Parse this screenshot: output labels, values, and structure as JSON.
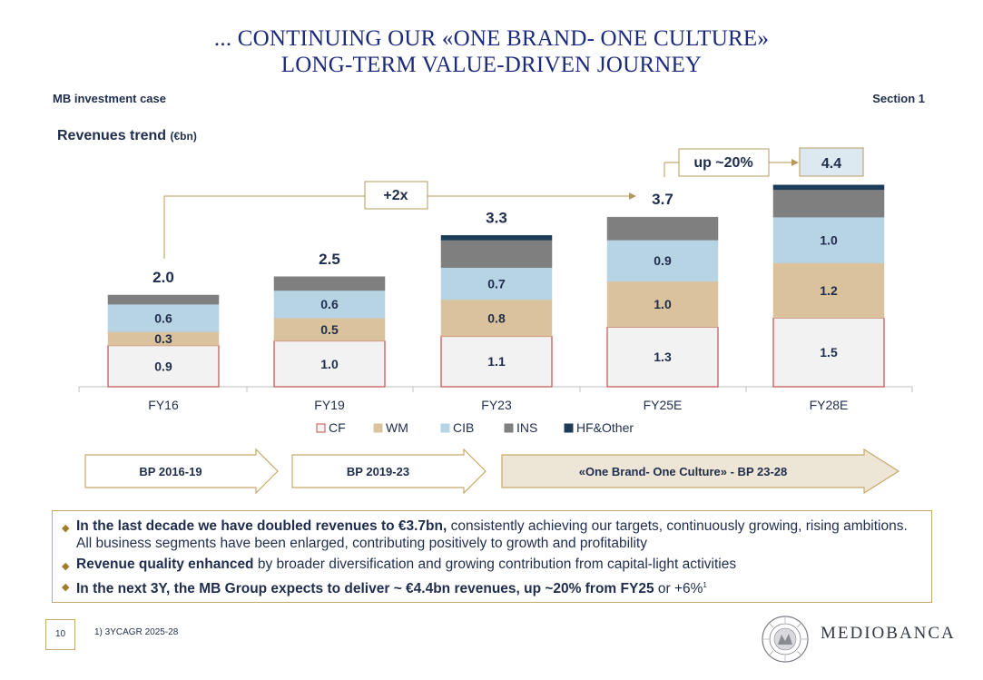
{
  "title": {
    "line1": "... CONTINUING OUR «ONE BRAND- ONE CULTURE»",
    "line2": "LONG-TERM VALUE-DRIVEN JOURNEY"
  },
  "header": {
    "left": "MB investment case",
    "right": "Section 1"
  },
  "chart_data": {
    "type": "bar",
    "stacked": true,
    "title": "Revenues trend",
    "unit": "(€bn)",
    "categories": [
      "FY16",
      "FY19",
      "FY23",
      "FY25E",
      "FY28E"
    ],
    "totals": [
      2.0,
      2.5,
      3.3,
      3.7,
      4.4
    ],
    "total_labels": [
      "2.0",
      "2.5",
      "3.3",
      "3.7",
      "4.4"
    ],
    "series": [
      {
        "name": "CF",
        "color": "#f2f2f2",
        "border": "#c0504d",
        "values": [
          0.9,
          1.0,
          1.1,
          1.3,
          1.5
        ],
        "labels": [
          "0.9",
          "1.0",
          "1.1",
          "1.3",
          "1.5"
        ]
      },
      {
        "name": "WM",
        "color": "#d9c29c",
        "border": "#d9c29c",
        "values": [
          0.3,
          0.5,
          0.8,
          1.0,
          1.2
        ],
        "labels": [
          "0.3",
          "0.5",
          "0.8",
          "1.0",
          "1.2"
        ]
      },
      {
        "name": "CIB",
        "color": "#b7d4e4",
        "border": "#b7d4e4",
        "values": [
          0.6,
          0.6,
          0.7,
          0.9,
          1.0
        ],
        "labels": [
          "0.6",
          "0.6",
          "0.7",
          "0.9",
          "1.0"
        ]
      },
      {
        "name": "INS",
        "color": "#807f7f",
        "border": "#807f7f",
        "values": [
          0.2,
          0.3,
          0.6,
          0.5,
          0.6
        ],
        "labels": [
          "",
          "",
          "",
          "",
          ""
        ]
      },
      {
        "name": "HF&Other",
        "color": "#1d3c5a",
        "border": "#1d3c5a",
        "values": [
          0.0,
          0.0,
          0.1,
          0.0,
          0.1
        ],
        "labels": [
          "",
          "",
          "",
          "",
          ""
        ]
      }
    ],
    "ylim": [
      0,
      4.5
    ],
    "grid": false,
    "legend": "bottom",
    "annotations": {
      "growth_2x": "+2x",
      "growth_20": "up ~20%",
      "target_value": "4.4"
    }
  },
  "phases": [
    {
      "label": "BP 2016-19",
      "style": "outline"
    },
    {
      "label": "BP 2019-23",
      "style": "outline"
    },
    {
      "label": "«One Brand- One Culture» - BP 23-28",
      "style": "filled"
    }
  ],
  "bullets": [
    {
      "bold": "In the last decade we have doubled revenues to €3.7bn,",
      "text": " consistently achieving our targets, continuously growing, rising ambitions. All business segments have been enlarged, contributing positively to growth and profitability"
    },
    {
      "bold": "Revenue quality enhanced",
      "text": " by broader diversification and growing contribution from capital-light activities"
    },
    {
      "bold": "In the next 3Y, the MB Group expects to deliver ~ €4.4bn revenues, up ~20% from FY25",
      "text": " or +6%",
      "sup": "1"
    }
  ],
  "footer": {
    "page_number": "10",
    "footnote": "1) 3YCAGR 2025-28",
    "brand": "MEDIOBANCA",
    "seal_text": "MEDIOBANCA · BANCA DI CREDITO FINANZIARIO"
  },
  "colors": {
    "accent_gold": "#c8a96b",
    "navy": "#1b2a7a",
    "text": "#1f2d4d"
  }
}
